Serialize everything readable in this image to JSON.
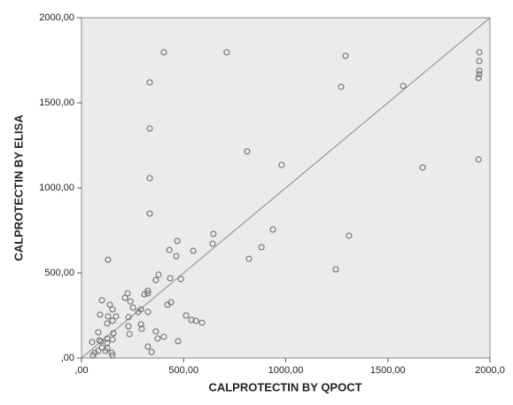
{
  "chart_data": {
    "type": "scatter",
    "x_label": "CALPROTECTIN BY QPOCT",
    "y_label": "CALPROTECTIN BY ELISA",
    "xlim": [
      0,
      2000
    ],
    "ylim": [
      0,
      2000
    ],
    "xticks": [
      {
        "value": 0,
        "label": ",00"
      },
      {
        "value": 500,
        "label": "500,00"
      },
      {
        "value": 1000,
        "label": "1000,00"
      },
      {
        "value": 1500,
        "label": "1500,00"
      },
      {
        "value": 2000,
        "label": "2000,0"
      }
    ],
    "yticks": [
      {
        "value": 0,
        "label": ",00"
      },
      {
        "value": 500,
        "label": "500,00"
      },
      {
        "value": 1000,
        "label": "1000,00"
      },
      {
        "value": 1500,
        "label": "1500,00"
      },
      {
        "value": 2000,
        "label": "2000,00"
      }
    ],
    "diagonal": true,
    "background": "#ebebeb",
    "color": "#666666",
    "x": [
      403,
      711,
      334,
      1293,
      1271,
      1575,
      1948,
      1948,
      1948,
      1948,
      1944,
      1944,
      1670,
      334,
      334,
      334,
      811,
      980,
      1310,
      937,
      1245,
      881,
      820,
      646,
      642,
      547,
      469,
      464,
      430,
      377,
      434,
      130,
      486,
      364,
      421,
      438,
      512,
      538,
      560,
      590,
      473,
      364,
      373,
      343,
      325,
      325,
      325,
      308,
      291,
      278,
      325,
      226,
      213,
      239,
      252,
      139,
      100,
      152,
      91,
      130,
      169,
      230,
      235,
      152,
      156,
      152,
      82,
      87,
      95,
      126,
      126,
      126,
      126,
      117,
      148,
      152,
      52,
      65,
      56,
      82,
      100,
      291,
      295,
      230,
      403
    ],
    "values": [
      1797,
      1797,
      1620,
      1776,
      1594,
      1599,
      1797,
      1745,
      1688,
      1667,
      1646,
      1167,
      1120,
      1349,
      1057,
      849,
      1214,
      1135,
      719,
      755,
      521,
      651,
      583,
      729,
      672,
      630,
      688,
      599,
      635,
      490,
      469,
      578,
      464,
      458,
      313,
      328,
      250,
      224,
      219,
      208,
      99,
      156,
      115,
      36,
      68,
      396,
      380,
      375,
      286,
      271,
      271,
      380,
      354,
      333,
      297,
      313,
      339,
      286,
      255,
      245,
      245,
      240,
      141,
      219,
      146,
      109,
      151,
      104,
      99,
      203,
      115,
      89,
      57,
      42,
      31,
      16,
      94,
      31,
      16,
      42,
      62,
      198,
      172,
      187,
      125
    ]
  }
}
